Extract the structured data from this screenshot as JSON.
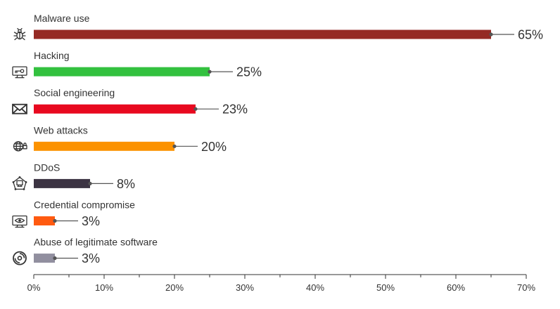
{
  "chart_data": {
    "type": "bar",
    "orientation": "horizontal",
    "title": "",
    "xlabel": "",
    "ylabel": "",
    "categories": [
      "Malware use",
      "Hacking",
      "Social engineering",
      "Web attacks",
      "DDoS",
      "Credential compromise",
      "Abuse of legitimate software"
    ],
    "values": [
      65,
      25,
      23,
      20,
      8,
      3,
      3
    ],
    "value_labels": [
      "65%",
      "25%",
      "23%",
      "20%",
      "8%",
      "3%",
      "3%"
    ],
    "colors": [
      "#952a24",
      "#33c13f",
      "#e8091f",
      "#fc9200",
      "#3c3443",
      "#ff5a10",
      "#918f9f"
    ],
    "icons": [
      "bug-icon",
      "monitor-key-icon",
      "envelope-icon",
      "globe-lock-icon",
      "network-target-icon",
      "monitor-eye-icon",
      "disc-icon"
    ],
    "xlim": [
      0,
      70
    ],
    "x_ticks": [
      0,
      10,
      20,
      30,
      40,
      50,
      60,
      70
    ],
    "x_tick_labels": [
      "0%",
      "10%",
      "20%",
      "30%",
      "40%",
      "50%",
      "60%",
      "70%"
    ],
    "grid": false,
    "legend": "none"
  }
}
